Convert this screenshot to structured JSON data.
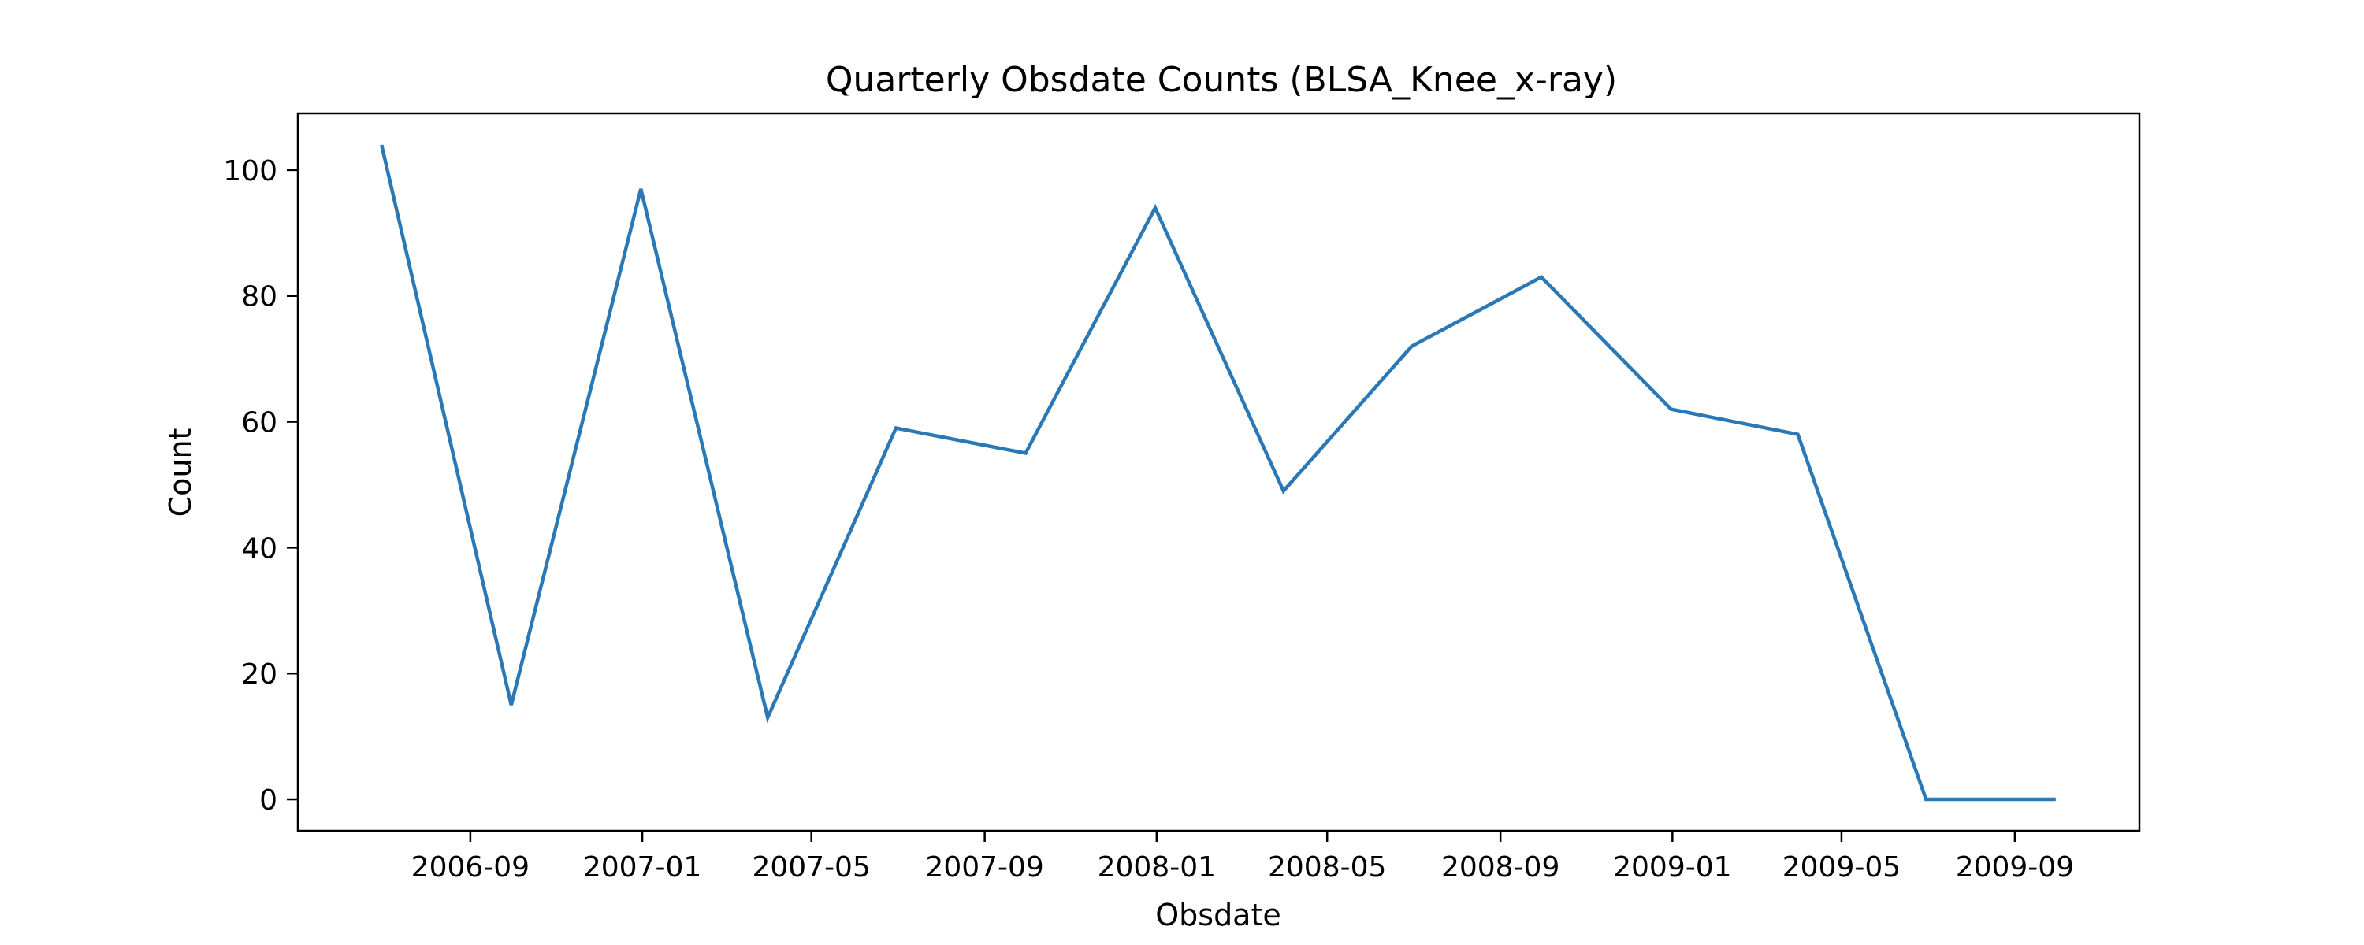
{
  "chart_data": {
    "type": "line",
    "title": "Quarterly Obsdate Counts (BLSA_Knee_x-ray)",
    "xlabel": "Obsdate",
    "ylabel": "Count",
    "x": [
      "2006-06-30",
      "2006-09-30",
      "2006-12-31",
      "2007-03-31",
      "2007-06-30",
      "2007-09-30",
      "2007-12-31",
      "2008-03-31",
      "2008-06-30",
      "2008-09-30",
      "2008-12-31",
      "2009-03-31",
      "2009-06-30",
      "2009-09-30"
    ],
    "series": [
      {
        "values": [
          104,
          15,
          97,
          13,
          59,
          55,
          94,
          49,
          72,
          83,
          62,
          58,
          0,
          0
        ]
      }
    ],
    "ylim": [
      -5,
      109
    ],
    "yticks": [
      0,
      20,
      40,
      60,
      80,
      100
    ],
    "xticks": [
      "2006-09",
      "2007-01",
      "2007-05",
      "2007-09",
      "2008-01",
      "2008-05",
      "2008-09",
      "2009-01",
      "2009-05",
      "2009-09"
    ],
    "grid": false,
    "colors": {
      "line": "#2a78b5",
      "axes": "#000000"
    }
  }
}
